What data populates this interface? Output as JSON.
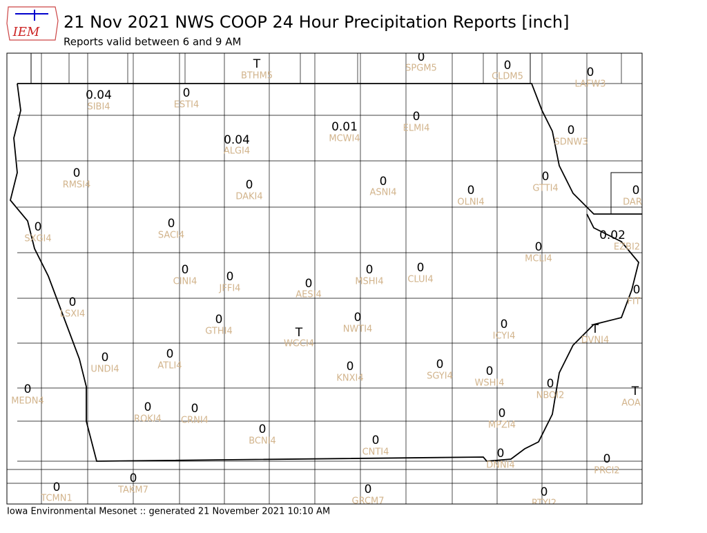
{
  "header": {
    "logo": "IEM",
    "title": "21 Nov 2021 NWS COOP 24 Hour Precipitation Reports [inch]",
    "subtitle": "Reports valid between 6 and 9 AM"
  },
  "footer": "Iowa Environmental Mesonet :: generated 21 November 2021 10:10 AM",
  "stations": [
    {
      "value": "T",
      "id": "BTHM5"
    },
    {
      "value": "0",
      "id": "SPGM5"
    },
    {
      "value": "0",
      "id": "CLDM5"
    },
    {
      "value": "0",
      "id": "LAFW3"
    },
    {
      "value": "0.04",
      "id": "SIBI4"
    },
    {
      "value": "0",
      "id": "ESTI4"
    },
    {
      "value": "0.04",
      "id": "ALGI4"
    },
    {
      "value": "0.01",
      "id": "MCWI4"
    },
    {
      "value": "0",
      "id": "ELMI4"
    },
    {
      "value": "0",
      "id": "SDNW3"
    },
    {
      "value": "0",
      "id": "RMSI4"
    },
    {
      "value": "0",
      "id": "DAKI4"
    },
    {
      "value": "0",
      "id": "ASNI4"
    },
    {
      "value": "0",
      "id": "OLNI4"
    },
    {
      "value": "0",
      "id": "GTTI4"
    },
    {
      "value": "0",
      "id": "DAR"
    },
    {
      "value": "0",
      "id": "SXGI4"
    },
    {
      "value": "0",
      "id": "SACI4"
    },
    {
      "value": "0.02",
      "id": "EZBI2"
    },
    {
      "value": "0",
      "id": "MCLI4"
    },
    {
      "value": "0",
      "id": "CINI4"
    },
    {
      "value": "0",
      "id": "JFFI4"
    },
    {
      "value": "0",
      "id": "AESI4"
    },
    {
      "value": "0",
      "id": "MSHI4"
    },
    {
      "value": "0",
      "id": "CLUI4"
    },
    {
      "value": "0",
      "id": "FIT"
    },
    {
      "value": "0",
      "id": "LSXI4"
    },
    {
      "value": "0",
      "id": "GTHI4"
    },
    {
      "value": "T",
      "id": "WGCI4"
    },
    {
      "value": "0",
      "id": "NWTI4"
    },
    {
      "value": "0",
      "id": "ICYI4"
    },
    {
      "value": "T",
      "id": "DVNI4"
    },
    {
      "value": "0",
      "id": "UNDI4"
    },
    {
      "value": "0",
      "id": "ATLI4"
    },
    {
      "value": "0",
      "id": "KNXI4"
    },
    {
      "value": "0",
      "id": "SGYI4"
    },
    {
      "value": "0",
      "id": "WSHI4"
    },
    {
      "value": "0",
      "id": "NBOI2"
    },
    {
      "value": "T",
      "id": "AOA"
    },
    {
      "value": "0",
      "id": "MEDN4"
    },
    {
      "value": "0",
      "id": "ROKI4"
    },
    {
      "value": "0",
      "id": "CRNI4"
    },
    {
      "value": "0",
      "id": "BCNI4"
    },
    {
      "value": "0",
      "id": "CNTI4"
    },
    {
      "value": "0",
      "id": "MPZI4"
    },
    {
      "value": "0",
      "id": "DNNI4"
    },
    {
      "value": "0",
      "id": "PRCI2"
    },
    {
      "value": "0",
      "id": "TAKM7"
    },
    {
      "value": "0",
      "id": "TCMN1"
    },
    {
      "value": "0",
      "id": "GRCM7"
    },
    {
      "value": "0",
      "id": "RTYI2"
    }
  ]
}
